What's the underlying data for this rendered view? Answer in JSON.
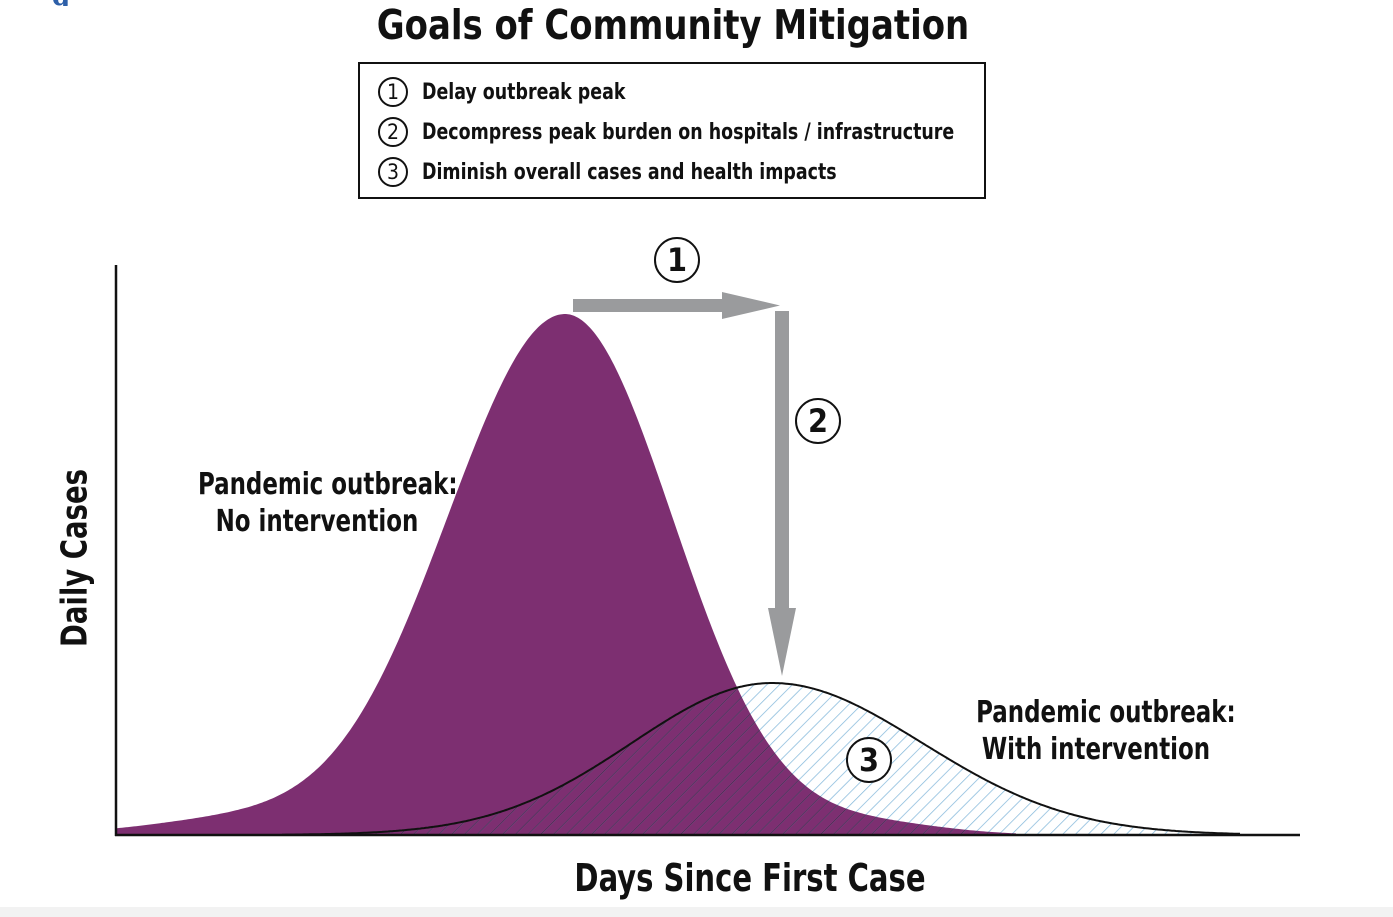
{
  "title": "Goals of Community Mitigation",
  "legend": {
    "items": [
      {
        "num": "1",
        "text": "Delay outbreak peak"
      },
      {
        "num": "2",
        "text": "Decompress peak burden on hospitals / infrastructure"
      },
      {
        "num": "3",
        "text": "Diminish overall cases and health impacts"
      }
    ]
  },
  "steps": {
    "one": "1",
    "two": "2",
    "three": "3"
  },
  "curves": {
    "no_intervention": {
      "line1": "Pandemic outbreak:",
      "line2": "No intervention",
      "color": "#7d2f71"
    },
    "with_intervention": {
      "line1": "Pandemic outbreak:",
      "line2": "With intervention",
      "hatch_color": "#86b9db"
    }
  },
  "axes": {
    "ylabel": "Daily Cases",
    "xlabel": "Days Since First Case"
  },
  "colors": {
    "arrow": "#9a9b9d",
    "ink": "#111111",
    "corner_mark": "#2d5fa8"
  }
}
